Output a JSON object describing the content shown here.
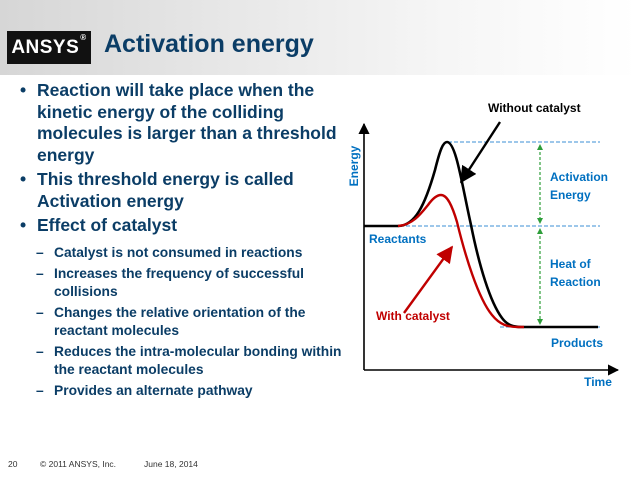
{
  "header": {
    "logo": "ANSYS",
    "logo_mark": "®",
    "title": "Activation energy"
  },
  "bullets": [
    {
      "text": "Reaction will take place when the kinetic energy of the colliding molecules is larger than a threshold energy"
    },
    {
      "text": "This threshold energy is called Activation energy"
    },
    {
      "text": "Effect of catalyst"
    }
  ],
  "sub_bullets": [
    {
      "text": "Catalyst is not consumed in reactions"
    },
    {
      "text": "Increases the frequency of successful collisions"
    },
    {
      "text": "Changes the relative orientation of the reactant molecules"
    },
    {
      "text": "Reduces the intra-molecular bonding within the reactant molecules"
    },
    {
      "text": "Provides an alternate pathway"
    }
  ],
  "symbols": {
    "bullet": "•",
    "dash": "–"
  },
  "footer": {
    "page": "20",
    "copyright": "© 2011 ANSYS, Inc.",
    "date": "June 18, 2014"
  },
  "diagram": {
    "y_axis_label": "Energy",
    "x_axis_label": "Time",
    "labels": {
      "without_catalyst": "Without catalyst",
      "with_catalyst": "With catalyst",
      "reactants": "Reactants",
      "products": "Products",
      "activation_line1": "Activation",
      "activation_line2": "Energy",
      "heat_line1": "Heat of",
      "heat_line2": "Reaction"
    },
    "colors": {
      "uncatalyzed_curve": "#000000",
      "catalyzed_curve": "#c00000",
      "label_blue": "#0070c0",
      "label_red": "#c00000",
      "guide_line": "#3b8fd6",
      "arrow_green": "#2e9e3a"
    }
  }
}
